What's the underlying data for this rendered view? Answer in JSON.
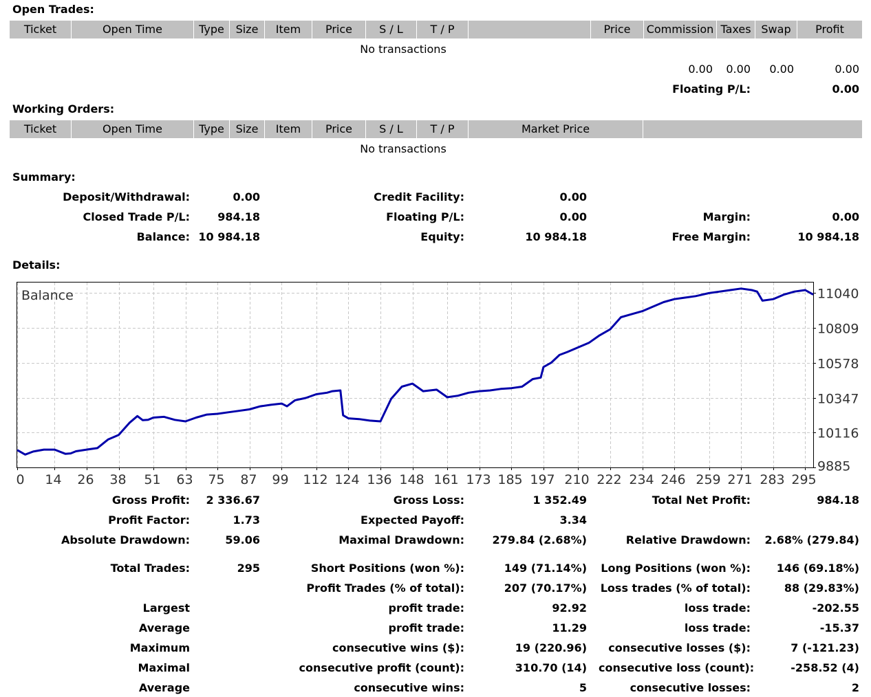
{
  "open_trades": {
    "title": "Open Trades:",
    "columns": [
      "Ticket",
      "Open Time",
      "Type",
      "Size",
      "Item",
      "Price",
      "S / L",
      "T / P",
      "",
      "Price",
      "Commission",
      "Taxes",
      "Swap",
      "Profit"
    ],
    "empty_text": "No transactions",
    "totals": {
      "commission": "0.00",
      "taxes": "0.00",
      "swap": "0.00",
      "profit": "0.00"
    },
    "floating_label": "Floating P/L:",
    "floating_value": "0.00"
  },
  "working_orders": {
    "title": "Working Orders:",
    "columns": [
      "Ticket",
      "Open Time",
      "Type",
      "Size",
      "Item",
      "Price",
      "S / L",
      "T / P",
      "Market Price",
      ""
    ],
    "empty_text": "No transactions"
  },
  "summary": {
    "title": "Summary:",
    "deposit_label": "Deposit/Withdrawal:",
    "deposit_value": "0.00",
    "credit_label": "Credit Facility:",
    "credit_value": "0.00",
    "closed_label": "Closed Trade P/L:",
    "closed_value": "984.18",
    "floating_label": "Floating P/L:",
    "floating_value": "0.00",
    "margin_label": "Margin:",
    "margin_value": "0.00",
    "balance_label": "Balance:",
    "balance_value": "10 984.18",
    "equity_label": "Equity:",
    "equity_value": "10 984.18",
    "free_margin_label": "Free Margin:",
    "free_margin_value": "10 984.18"
  },
  "details": {
    "title": "Details:",
    "gross_profit_label": "Gross Profit:",
    "gross_profit_value": "2 336.67",
    "gross_loss_label": "Gross Loss:",
    "gross_loss_value": "1 352.49",
    "total_net_label": "Total Net Profit:",
    "total_net_value": "984.18",
    "profit_factor_label": "Profit Factor:",
    "profit_factor_value": "1.73",
    "expected_payoff_label": "Expected Payoff:",
    "expected_payoff_value": "3.34",
    "abs_dd_label": "Absolute Drawdown:",
    "abs_dd_value": "59.06",
    "max_dd_label": "Maximal Drawdown:",
    "max_dd_value": "279.84 (2.68%)",
    "rel_dd_label": "Relative Drawdown:",
    "rel_dd_value": "2.68% (279.84)",
    "total_trades_label": "Total Trades:",
    "total_trades_value": "295",
    "short_label": "Short Positions (won %):",
    "short_value": "149 (71.14%)",
    "long_label": "Long Positions (won %):",
    "long_value": "146 (69.18%)",
    "profit_trades_label": "Profit Trades (% of total):",
    "profit_trades_value": "207 (70.17%)",
    "loss_trades_label": "Loss trades (% of total):",
    "loss_trades_value": "88 (29.83%)",
    "largest_label": "Largest",
    "largest_profit_label": "profit trade:",
    "largest_profit_value": "92.92",
    "largest_loss_label": "loss trade:",
    "largest_loss_value": "-202.55",
    "average_label": "Average",
    "average_profit_label": "profit trade:",
    "average_profit_value": "11.29",
    "average_loss_label": "loss trade:",
    "average_loss_value": "-15.37",
    "maximum_label": "Maximum",
    "max_cons_wins_label": "consecutive wins ($):",
    "max_cons_wins_value": "19 (220.96)",
    "max_cons_losses_label": "consecutive losses ($):",
    "max_cons_losses_value": "7 (-121.23)",
    "maximal_label": "Maximal",
    "maximal_profit_label": "consecutive profit (count):",
    "maximal_profit_value": "310.70 (14)",
    "maximal_loss_label": "consecutive loss (count):",
    "maximal_loss_value": "-258.52 (4)",
    "average2_label": "Average",
    "avg_cons_wins_label": "consecutive wins:",
    "avg_cons_wins_value": "5",
    "avg_cons_losses_label": "consecutive losses:",
    "avg_cons_losses_value": "2"
  },
  "chart_data": {
    "type": "line",
    "title": "Balance",
    "series_color": "#0000aa",
    "grid": true,
    "ylim": [
      9885,
      11110
    ],
    "xlim": [
      0,
      298
    ],
    "yticks": [
      9885,
      10116,
      10347,
      10578,
      10809,
      11040
    ],
    "xticks": [
      0,
      14,
      26,
      38,
      51,
      63,
      75,
      87,
      99,
      112,
      124,
      136,
      148,
      161,
      173,
      185,
      197,
      210,
      222,
      234,
      246,
      259,
      271,
      283,
      295
    ],
    "x": [
      0,
      3,
      6,
      10,
      14,
      18,
      20,
      22,
      26,
      30,
      34,
      38,
      42,
      45,
      47,
      49,
      51,
      55,
      59,
      63,
      67,
      71,
      75,
      79,
      83,
      87,
      91,
      95,
      99,
      101,
      104,
      108,
      112,
      116,
      118,
      121,
      122,
      124,
      128,
      132,
      136,
      140,
      144,
      148,
      152,
      157,
      161,
      165,
      169,
      173,
      177,
      181,
      185,
      189,
      193,
      196,
      197,
      200,
      203,
      206,
      210,
      214,
      218,
      222,
      226,
      230,
      234,
      238,
      242,
      246,
      250,
      254,
      259,
      263,
      267,
      271,
      275,
      277,
      279,
      281,
      283,
      287,
      291,
      295,
      298
    ],
    "values": [
      10000,
      9970,
      9990,
      10003,
      10003,
      9975,
      9978,
      9992,
      10003,
      10013,
      10070,
      10100,
      10180,
      10225,
      10198,
      10200,
      10215,
      10220,
      10200,
      10190,
      10215,
      10235,
      10240,
      10250,
      10260,
      10270,
      10290,
      10300,
      10308,
      10290,
      10330,
      10345,
      10370,
      10380,
      10390,
      10395,
      10230,
      10210,
      10205,
      10195,
      10190,
      10340,
      10420,
      10440,
      10390,
      10400,
      10350,
      10360,
      10380,
      10390,
      10395,
      10405,
      10410,
      10420,
      10470,
      10480,
      10550,
      10580,
      10630,
      10650,
      10680,
      10710,
      10760,
      10800,
      10880,
      10900,
      10920,
      10950,
      10980,
      11000,
      11010,
      11020,
      11040,
      11050,
      11060,
      11070,
      11060,
      11050,
      10990,
      10995,
      11000,
      11030,
      11050,
      11060,
      11030
    ]
  }
}
